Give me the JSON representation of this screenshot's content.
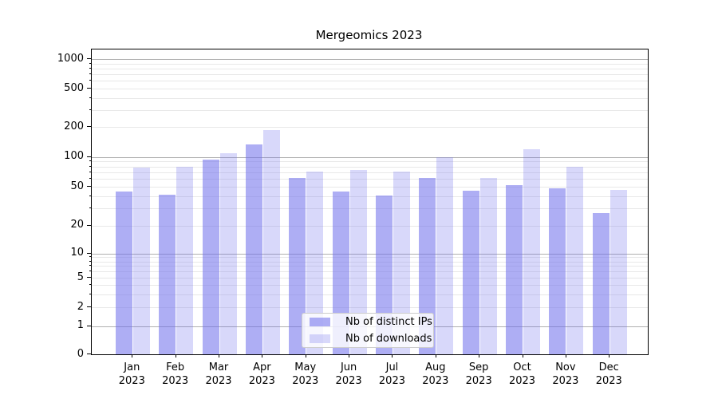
{
  "chart_data": {
    "type": "bar",
    "title": "Mergeomics 2023",
    "subtitle": "",
    "xlabel": "",
    "ylabel": "",
    "scale": "symlog",
    "grid": true,
    "legend_position": "lower center",
    "yticks": [
      0,
      1,
      2,
      5,
      10,
      20,
      50,
      100,
      200,
      500,
      1000
    ],
    "ylim": [
      0,
      1300
    ],
    "months": [
      "Jan",
      "Feb",
      "Mar",
      "Apr",
      "May",
      "Jun",
      "Jul",
      "Aug",
      "Sep",
      "Oct",
      "Nov",
      "Dec"
    ],
    "year_label": "2023",
    "categories": [
      "Jan 2023",
      "Feb 2023",
      "Mar 2023",
      "Apr 2023",
      "May 2023",
      "Jun 2023",
      "Jul 2023",
      "Aug 2023",
      "Sep 2023",
      "Oct 2023",
      "Nov 2023",
      "Dec 2023"
    ],
    "series": [
      {
        "name": "Nb of distinct IPs",
        "color": "rgba(110,110,235,0.56)",
        "color_hex_on_white": "#a9a9f1",
        "values": [
          45,
          42,
          94,
          133,
          61,
          45,
          41,
          62,
          46,
          52,
          48,
          27
        ]
      },
      {
        "name": "Nb of downloads",
        "color": "rgba(110,110,235,0.27)",
        "color_hex_on_white": "#d8d8f7",
        "values": [
          78,
          80,
          108,
          185,
          71,
          74,
          71,
          100,
          61,
          120,
          80,
          47
        ]
      }
    ],
    "colors": {
      "major_gridline": "#b0b0b0",
      "minor_gridline": "#e8e8e8",
      "axis_frame": "#000000",
      "text": "#000000",
      "background": "#ffffff"
    }
  }
}
